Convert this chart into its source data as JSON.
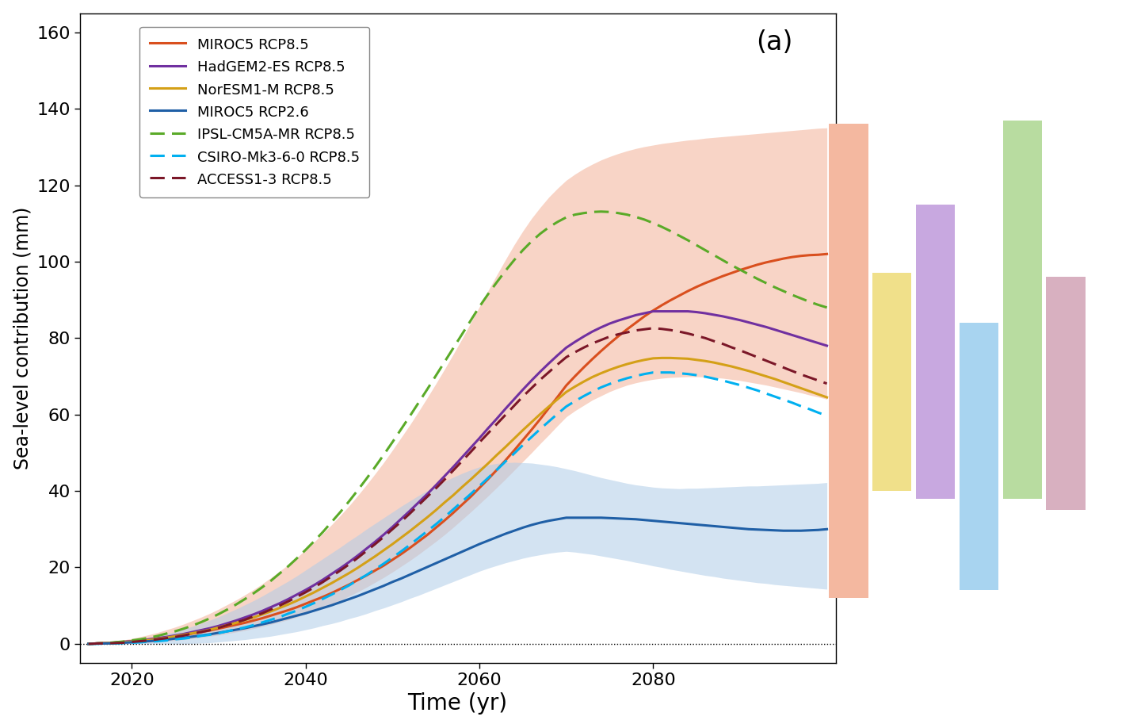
{
  "title": "(a)",
  "xlabel": "Time (yr)",
  "ylabel": "Sea-level contribution (mm)",
  "xlim": [
    2014,
    2101
  ],
  "ylim": [
    -5,
    165
  ],
  "yticks": [
    0,
    20,
    40,
    60,
    80,
    100,
    120,
    140,
    160
  ],
  "xticks": [
    2020,
    2040,
    2060,
    2080
  ],
  "years": [
    2015,
    2016,
    2017,
    2018,
    2019,
    2020,
    2021,
    2022,
    2023,
    2024,
    2025,
    2026,
    2027,
    2028,
    2029,
    2030,
    2031,
    2032,
    2033,
    2034,
    2035,
    2036,
    2037,
    2038,
    2039,
    2040,
    2041,
    2042,
    2043,
    2044,
    2045,
    2046,
    2047,
    2048,
    2049,
    2050,
    2051,
    2052,
    2053,
    2054,
    2055,
    2056,
    2057,
    2058,
    2059,
    2060,
    2061,
    2062,
    2063,
    2064,
    2065,
    2066,
    2067,
    2068,
    2069,
    2070,
    2071,
    2072,
    2073,
    2074,
    2075,
    2076,
    2077,
    2078,
    2079,
    2080,
    2081,
    2082,
    2083,
    2084,
    2085,
    2086,
    2087,
    2088,
    2089,
    2090,
    2091,
    2092,
    2093,
    2094,
    2095,
    2096,
    2097,
    2098,
    2099,
    2100
  ],
  "miroc5_rcp85_mean": [
    0.0,
    0.1,
    0.2,
    0.3,
    0.5,
    0.7,
    0.9,
    1.1,
    1.4,
    1.7,
    2.0,
    2.3,
    2.7,
    3.1,
    3.5,
    4.0,
    4.5,
    5.0,
    5.5,
    6.1,
    6.7,
    7.4,
    8.1,
    8.8,
    9.6,
    10.5,
    11.4,
    12.3,
    13.3,
    14.4,
    15.5,
    16.7,
    17.9,
    19.2,
    20.5,
    22.0,
    23.5,
    25.1,
    26.8,
    28.5,
    30.4,
    32.3,
    34.3,
    36.4,
    38.5,
    40.8,
    43.1,
    45.5,
    48.0,
    50.6,
    53.3,
    56.0,
    58.8,
    61.7,
    64.6,
    67.6,
    70.0,
    72.3,
    74.5,
    76.6,
    78.6,
    80.5,
    82.3,
    84.0,
    85.7,
    87.2,
    88.6,
    89.9,
    91.1,
    92.3,
    93.4,
    94.4,
    95.3,
    96.2,
    97.0,
    97.8,
    98.5,
    99.2,
    99.8,
    100.3,
    100.8,
    101.2,
    101.5,
    101.7,
    101.8,
    102.0
  ],
  "miroc5_rcp85_upper": [
    0.0,
    0.2,
    0.4,
    0.7,
    1.0,
    1.4,
    1.9,
    2.4,
    3.0,
    3.7,
    4.4,
    5.2,
    6.1,
    7.0,
    8.0,
    9.1,
    10.3,
    11.5,
    12.8,
    14.2,
    15.7,
    17.3,
    19.0,
    20.7,
    22.6,
    24.6,
    26.7,
    28.9,
    31.2,
    33.6,
    36.1,
    38.8,
    41.6,
    44.5,
    47.5,
    50.7,
    54.0,
    57.3,
    60.8,
    64.4,
    68.1,
    71.9,
    75.8,
    79.8,
    84.0,
    88.2,
    92.4,
    96.5,
    100.5,
    104.4,
    108.0,
    111.3,
    114.2,
    116.9,
    119.2,
    121.3,
    122.9,
    124.3,
    125.5,
    126.6,
    127.5,
    128.3,
    129.0,
    129.6,
    130.1,
    130.5,
    130.9,
    131.2,
    131.5,
    131.8,
    132.0,
    132.3,
    132.5,
    132.7,
    132.9,
    133.1,
    133.3,
    133.5,
    133.7,
    133.9,
    134.1,
    134.3,
    134.5,
    134.7,
    134.9,
    135.0
  ],
  "miroc5_rcp85_lower": [
    0.0,
    0.0,
    0.0,
    0.0,
    0.1,
    0.2,
    0.3,
    0.4,
    0.5,
    0.7,
    0.9,
    1.1,
    1.4,
    1.7,
    2.0,
    2.3,
    2.7,
    3.1,
    3.5,
    4.0,
    4.5,
    5.1,
    5.7,
    6.3,
    7.0,
    7.8,
    8.6,
    9.5,
    10.4,
    11.4,
    12.5,
    13.6,
    14.8,
    16.1,
    17.4,
    18.8,
    20.3,
    21.8,
    23.4,
    25.1,
    26.8,
    28.6,
    30.5,
    32.5,
    34.5,
    36.6,
    38.7,
    40.9,
    43.1,
    45.4,
    47.7,
    50.0,
    52.4,
    54.7,
    57.1,
    59.4,
    61.0,
    62.4,
    63.8,
    64.9,
    66.0,
    66.9,
    67.7,
    68.3,
    68.8,
    69.2,
    69.5,
    69.7,
    69.8,
    69.9,
    69.9,
    69.8,
    69.7,
    69.5,
    69.2,
    68.9,
    68.5,
    68.1,
    67.7,
    67.2,
    66.7,
    66.2,
    65.7,
    65.1,
    64.6,
    64.0
  ],
  "miroc5_rcp26_mean": [
    0.0,
    0.1,
    0.1,
    0.2,
    0.3,
    0.4,
    0.6,
    0.7,
    0.9,
    1.1,
    1.4,
    1.6,
    1.9,
    2.2,
    2.5,
    2.9,
    3.3,
    3.7,
    4.1,
    4.6,
    5.1,
    5.6,
    6.2,
    6.8,
    7.4,
    8.0,
    8.7,
    9.4,
    10.1,
    10.9,
    11.7,
    12.5,
    13.4,
    14.3,
    15.2,
    16.2,
    17.1,
    18.1,
    19.1,
    20.1,
    21.1,
    22.1,
    23.1,
    24.1,
    25.1,
    26.1,
    27.0,
    27.9,
    28.8,
    29.6,
    30.4,
    31.1,
    31.7,
    32.2,
    32.6,
    33.0,
    33.0,
    33.0,
    33.0,
    33.0,
    32.9,
    32.8,
    32.7,
    32.6,
    32.4,
    32.2,
    32.0,
    31.8,
    31.6,
    31.4,
    31.2,
    31.0,
    30.8,
    30.6,
    30.4,
    30.2,
    30.0,
    29.9,
    29.8,
    29.7,
    29.6,
    29.6,
    29.6,
    29.7,
    29.8,
    30.0
  ],
  "miroc5_rcp26_upper": [
    0.0,
    0.1,
    0.2,
    0.4,
    0.6,
    0.9,
    1.2,
    1.6,
    2.1,
    2.6,
    3.2,
    3.9,
    4.6,
    5.4,
    6.2,
    7.1,
    8.1,
    9.1,
    10.2,
    11.3,
    12.5,
    13.8,
    15.1,
    16.4,
    17.8,
    19.3,
    20.8,
    22.3,
    23.8,
    25.3,
    26.9,
    28.4,
    30.0,
    31.5,
    33.0,
    34.5,
    36.0,
    37.4,
    38.8,
    40.1,
    41.3,
    42.5,
    43.6,
    44.6,
    45.5,
    46.3,
    46.8,
    47.2,
    47.4,
    47.5,
    47.4,
    47.3,
    47.0,
    46.7,
    46.3,
    45.8,
    45.3,
    44.7,
    44.1,
    43.5,
    43.0,
    42.5,
    42.0,
    41.6,
    41.3,
    41.0,
    40.8,
    40.7,
    40.6,
    40.7,
    40.7,
    40.8,
    40.9,
    41.0,
    41.1,
    41.2,
    41.3,
    41.3,
    41.4,
    41.5,
    41.6,
    41.7,
    41.8,
    41.9,
    42.0,
    42.2
  ],
  "miroc5_rcp26_lower": [
    0.0,
    0.0,
    0.0,
    0.0,
    0.0,
    0.0,
    0.0,
    0.0,
    0.0,
    0.0,
    0.0,
    0.0,
    0.1,
    0.2,
    0.3,
    0.5,
    0.7,
    0.9,
    1.1,
    1.4,
    1.7,
    2.0,
    2.4,
    2.8,
    3.2,
    3.7,
    4.2,
    4.8,
    5.3,
    5.9,
    6.6,
    7.2,
    7.9,
    8.7,
    9.4,
    10.2,
    11.0,
    11.9,
    12.7,
    13.6,
    14.5,
    15.4,
    16.3,
    17.2,
    18.1,
    19.0,
    19.8,
    20.5,
    21.2,
    21.8,
    22.4,
    22.9,
    23.3,
    23.7,
    24.0,
    24.2,
    24.0,
    23.7,
    23.4,
    23.0,
    22.6,
    22.2,
    21.8,
    21.3,
    20.9,
    20.4,
    20.0,
    19.5,
    19.1,
    18.7,
    18.3,
    17.9,
    17.6,
    17.2,
    16.9,
    16.6,
    16.3,
    16.0,
    15.8,
    15.5,
    15.3,
    15.1,
    14.9,
    14.7,
    14.5,
    14.3
  ],
  "hadgem2_rcp85_mean": [
    0.0,
    0.1,
    0.2,
    0.3,
    0.5,
    0.7,
    0.9,
    1.2,
    1.5,
    1.8,
    2.2,
    2.6,
    3.1,
    3.6,
    4.1,
    4.7,
    5.4,
    6.1,
    6.9,
    7.7,
    8.6,
    9.6,
    10.6,
    11.7,
    12.9,
    14.1,
    15.4,
    16.8,
    18.3,
    19.8,
    21.4,
    23.1,
    24.9,
    26.7,
    28.6,
    30.6,
    32.7,
    34.8,
    37.0,
    39.2,
    41.5,
    43.9,
    46.3,
    48.8,
    51.3,
    53.8,
    56.4,
    58.9,
    61.5,
    64.0,
    66.5,
    68.9,
    71.2,
    73.4,
    75.5,
    77.5,
    79.0,
    80.4,
    81.7,
    82.8,
    83.8,
    84.6,
    85.3,
    86.0,
    86.5,
    87.0,
    87.0,
    87.0,
    87.0,
    87.0,
    86.8,
    86.5,
    86.1,
    85.7,
    85.2,
    84.7,
    84.1,
    83.5,
    82.9,
    82.2,
    81.5,
    80.8,
    80.1,
    79.4,
    78.7,
    78.0
  ],
  "noresm1_rcp85_mean": [
    0.0,
    0.1,
    0.2,
    0.3,
    0.4,
    0.6,
    0.8,
    1.0,
    1.3,
    1.6,
    2.0,
    2.4,
    2.8,
    3.2,
    3.7,
    4.3,
    4.9,
    5.5,
    6.2,
    6.9,
    7.7,
    8.5,
    9.4,
    10.3,
    11.3,
    12.4,
    13.5,
    14.7,
    15.9,
    17.2,
    18.5,
    19.9,
    21.4,
    22.9,
    24.5,
    26.1,
    27.8,
    29.5,
    31.3,
    33.1,
    35.0,
    37.0,
    38.9,
    41.0,
    43.0,
    45.1,
    47.2,
    49.4,
    51.5,
    53.7,
    55.9,
    58.0,
    60.1,
    62.1,
    64.0,
    65.9,
    67.3,
    68.6,
    69.8,
    70.8,
    71.7,
    72.5,
    73.2,
    73.8,
    74.3,
    74.7,
    74.8,
    74.8,
    74.7,
    74.6,
    74.3,
    74.0,
    73.6,
    73.1,
    72.6,
    72.0,
    71.4,
    70.7,
    70.0,
    69.3,
    68.5,
    67.7,
    66.9,
    66.1,
    65.3,
    64.5
  ],
  "ipsl_rcp85_mean": [
    0.0,
    0.1,
    0.2,
    0.4,
    0.6,
    0.9,
    1.2,
    1.6,
    2.1,
    2.7,
    3.3,
    4.0,
    4.8,
    5.7,
    6.7,
    7.8,
    9.0,
    10.3,
    11.7,
    13.2,
    14.8,
    16.5,
    18.4,
    20.3,
    22.4,
    24.6,
    26.9,
    29.3,
    31.9,
    34.5,
    37.3,
    40.2,
    43.2,
    46.3,
    49.5,
    52.8,
    56.2,
    59.6,
    63.1,
    66.6,
    70.2,
    73.8,
    77.4,
    81.0,
    84.6,
    88.2,
    91.5,
    94.6,
    97.6,
    100.4,
    103.0,
    105.3,
    107.3,
    109.0,
    110.4,
    111.6,
    112.3,
    112.7,
    113.0,
    113.1,
    113.0,
    112.7,
    112.3,
    111.7,
    111.0,
    110.1,
    109.1,
    108.0,
    106.8,
    105.6,
    104.3,
    103.0,
    101.7,
    100.4,
    99.1,
    97.9,
    96.7,
    95.5,
    94.4,
    93.3,
    92.3,
    91.3,
    90.4,
    89.5,
    88.7,
    88.0
  ],
  "csiro_rcp85_mean": [
    0.0,
    0.0,
    0.1,
    0.1,
    0.2,
    0.3,
    0.4,
    0.6,
    0.7,
    0.9,
    1.2,
    1.4,
    1.7,
    2.1,
    2.4,
    2.8,
    3.3,
    3.8,
    4.3,
    4.9,
    5.6,
    6.3,
    7.0,
    7.9,
    8.7,
    9.7,
    10.7,
    11.8,
    12.9,
    14.1,
    15.3,
    16.7,
    18.0,
    19.5,
    21.0,
    22.6,
    24.2,
    25.9,
    27.7,
    29.5,
    31.3,
    33.2,
    35.2,
    37.2,
    39.2,
    41.3,
    43.4,
    45.5,
    47.7,
    49.8,
    52.0,
    54.1,
    56.2,
    58.2,
    60.2,
    62.1,
    63.5,
    64.8,
    66.0,
    67.1,
    68.0,
    68.8,
    69.5,
    70.1,
    70.6,
    71.0,
    71.0,
    71.0,
    70.8,
    70.6,
    70.3,
    69.9,
    69.4,
    68.9,
    68.3,
    67.7,
    67.0,
    66.3,
    65.5,
    64.7,
    63.9,
    63.1,
    62.2,
    61.4,
    60.5,
    59.7
  ],
  "access_rcp85_mean": [
    0.0,
    0.1,
    0.1,
    0.2,
    0.3,
    0.5,
    0.7,
    0.9,
    1.2,
    1.5,
    1.8,
    2.2,
    2.7,
    3.1,
    3.6,
    4.2,
    4.9,
    5.6,
    6.3,
    7.2,
    8.0,
    9.0,
    10.0,
    11.1,
    12.3,
    13.5,
    14.8,
    16.2,
    17.7,
    19.2,
    20.8,
    22.5,
    24.3,
    26.1,
    28.0,
    30.0,
    32.0,
    34.1,
    36.3,
    38.5,
    40.7,
    43.0,
    45.4,
    47.8,
    50.2,
    52.7,
    55.1,
    57.5,
    59.9,
    62.3,
    64.7,
    66.9,
    69.1,
    71.1,
    73.1,
    75.0,
    76.3,
    77.5,
    78.6,
    79.5,
    80.4,
    81.0,
    81.5,
    82.0,
    82.3,
    82.6,
    82.4,
    82.1,
    81.7,
    81.2,
    80.6,
    80.0,
    79.2,
    78.5,
    77.6,
    76.8,
    75.9,
    75.0,
    74.1,
    73.2,
    72.3,
    71.4,
    70.5,
    69.7,
    68.9,
    68.1
  ],
  "colors": {
    "miroc5_rcp85": "#d94f1e",
    "hadgem2_rcp85": "#7030a0",
    "noresm1_rcp85": "#d4a017",
    "miroc5_rcp26": "#1f5fa6",
    "ipsl_rcp85": "#5aaa28",
    "csiro_rcp85": "#00b0f0",
    "access_rcp85": "#7b1728"
  },
  "shade_miroc5_rcp85": "#f4b8a0",
  "shade_miroc5_rcp26": "#b0cce8",
  "bars": [
    {
      "label": "miroc5_rcp85",
      "x": 2102.5,
      "bottom": 12,
      "top": 136,
      "color": "#f4b8a0"
    },
    {
      "label": "noresm1_rcp85",
      "x": 2107.5,
      "bottom": 40,
      "top": 97,
      "color": "#f0e08a"
    },
    {
      "label": "hadgem2_rcp85",
      "x": 2112.5,
      "bottom": 38,
      "top": 115,
      "color": "#c8a8e0"
    },
    {
      "label": "csiro_rcp85",
      "x": 2117.5,
      "bottom": 14,
      "top": 84,
      "color": "#a8d4f0"
    },
    {
      "label": "ipsl_rcp85",
      "x": 2122.5,
      "bottom": 38,
      "top": 137,
      "color": "#b8dca0"
    },
    {
      "label": "access_rcp85",
      "x": 2127.5,
      "bottom": 35,
      "top": 96,
      "color": "#d8b0c0"
    }
  ],
  "bar_width": 4.5
}
